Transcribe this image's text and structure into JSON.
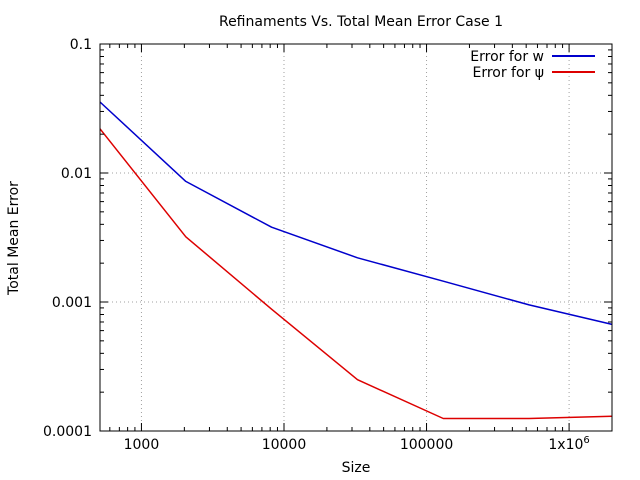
{
  "chart_data": {
    "type": "line",
    "title": "Refinaments Vs. Total Mean Error Case 1",
    "xlabel": "Size",
    "ylabel": "Total Mean Error",
    "x_scale": "log",
    "y_scale": "log",
    "xlim": [
      512,
      2000000
    ],
    "ylim": [
      0.0001,
      0.1
    ],
    "grid": true,
    "legend_position": "top-right",
    "x_ticks": [
      {
        "value": 1000,
        "label": "1000"
      },
      {
        "value": 10000,
        "label": "10000"
      },
      {
        "value": 100000,
        "label": "100000"
      },
      {
        "value": 1000000,
        "label": "1x10",
        "sup": "6"
      }
    ],
    "y_ticks": [
      {
        "value": 0.0001,
        "label": "0.0001"
      },
      {
        "value": 0.001,
        "label": "0.001"
      },
      {
        "value": 0.01,
        "label": "0.01"
      },
      {
        "value": 0.1,
        "label": "0.1"
      }
    ],
    "series": [
      {
        "name": "Error for w",
        "color": "#0000cc",
        "x": [
          512,
          2048,
          8192,
          32768,
          131072,
          524288,
          2000000
        ],
        "y": [
          0.0355,
          0.0086,
          0.0038,
          0.0022,
          0.00145,
          0.00095,
          0.00067
        ]
      },
      {
        "name": "Error for ψ",
        "color": "#dd0000",
        "x": [
          512,
          2048,
          8192,
          32768,
          131072,
          524288,
          2000000
        ],
        "y": [
          0.022,
          0.0032,
          0.00088,
          0.00025,
          0.000125,
          0.000125,
          0.00013
        ]
      }
    ]
  }
}
